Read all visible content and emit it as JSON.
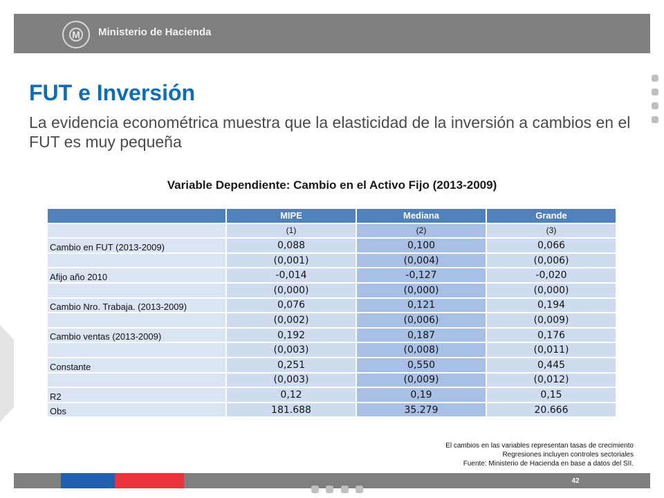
{
  "header": {
    "ministry_name": "Ministerio de Hacienda",
    "logo_icon": "ministry-seal-icon"
  },
  "slide": {
    "title": "FUT e Inversión",
    "subtitle": "La evidencia econométrica muestra que la elasticidad de la inversión a cambios en el FUT es muy pequeña"
  },
  "table": {
    "title": "Variable Dependiente: Cambio en el Activo Fijo (2013-2009)",
    "columns": [
      "",
      "MIPE",
      "Mediana",
      "Grande"
    ],
    "rows": [
      {
        "label": "",
        "values": [
          "(1)",
          "(2)",
          "(3)"
        ]
      },
      {
        "label": "Cambio en FUT (2013-2009)",
        "values": [
          "0,088",
          "0,100",
          "0,066"
        ]
      },
      {
        "label": "",
        "values": [
          "(0,001)",
          "(0,004)",
          "(0,006)"
        ]
      },
      {
        "label": "Afijo año 2010",
        "values": [
          "-0,014",
          "-0,127",
          "-0,020"
        ]
      },
      {
        "label": "",
        "values": [
          "(0,000)",
          "(0,000)",
          "(0,000)"
        ]
      },
      {
        "label": "Cambio Nro. Trabaja. (2013-2009)",
        "values": [
          "0,076",
          "0,121",
          "0,194"
        ]
      },
      {
        "label": "",
        "values": [
          "(0,002)",
          "(0,006)",
          "(0,009)"
        ]
      },
      {
        "label": "Cambio ventas (2013-2009)",
        "values": [
          "0,192",
          "0,187",
          "0,176"
        ]
      },
      {
        "label": "",
        "values": [
          "(0,003)",
          "(0,008)",
          "(0,011)"
        ]
      },
      {
        "label": "Constante",
        "values": [
          "0,251",
          "0,550",
          "0,445"
        ]
      },
      {
        "label": "",
        "values": [
          "(0,003)",
          "(0,009)",
          "(0,012)"
        ]
      },
      {
        "label": "R2",
        "values": [
          "0,12",
          "0,19",
          "0,15"
        ]
      },
      {
        "label": "Obs",
        "values": [
          "181.688",
          "35.279",
          "20.666"
        ]
      }
    ]
  },
  "notes": [
    "El cambios en las variables  representan tasas de crecimiento",
    "Regresiones incluyen controles sectoriales",
    "Fuente: Ministerio de Hacienda en base a datos del SII."
  ],
  "footer": {
    "page_number": "42"
  },
  "colors": {
    "header": "#7f7f7f",
    "title": "#0a6ebd",
    "table_header": "#4f81bd",
    "footer_blue": "#1f5fb0",
    "footer_red": "#e9323c"
  }
}
